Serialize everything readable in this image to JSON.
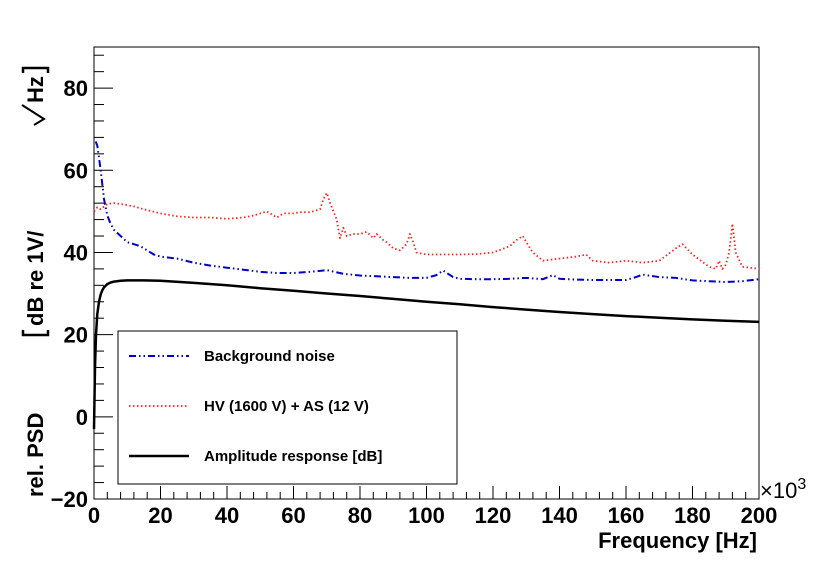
{
  "chart_data": {
    "type": "line",
    "title": "",
    "xlabel": "Frequency [Hz]",
    "ylabel_main": "rel. PSD",
    "ylabel_bracket_content": "dB re 1V/",
    "ylabel_bracket_tail": "Hz",
    "x_multiplier": "×10",
    "x_multiplier_exp": "3",
    "xlim": [
      0,
      200
    ],
    "ylim": [
      -20,
      90
    ],
    "x_ticks": [
      0,
      20,
      40,
      60,
      80,
      100,
      120,
      140,
      160,
      180,
      200
    ],
    "x_tick_labels": [
      "0",
      "20",
      "40",
      "60",
      "80",
      "100",
      "120",
      "140",
      "160",
      "180",
      "200"
    ],
    "y_ticks": [
      -20,
      0,
      20,
      40,
      60,
      80
    ],
    "y_tick_labels": [
      "−20",
      "0",
      "20",
      "40",
      "60",
      "80"
    ],
    "grid": false,
    "legend_position": "bottom-left",
    "series": [
      {
        "name": "Background noise",
        "color": "#0000cc",
        "dash": "dashdot",
        "x": [
          0.5,
          1,
          2,
          3,
          4,
          5,
          6,
          8,
          10,
          12,
          14,
          16,
          18,
          20,
          25,
          30,
          35,
          40,
          45,
          50,
          55,
          60,
          65,
          68,
          70,
          75,
          80,
          85,
          90,
          95,
          100,
          103,
          105,
          108,
          110,
          115,
          120,
          125,
          130,
          135,
          138,
          140,
          145,
          150,
          155,
          160,
          163,
          165,
          170,
          175,
          180,
          185,
          190,
          195,
          200
        ],
        "y": [
          67,
          66,
          60,
          53,
          49,
          47,
          45.5,
          44,
          42.5,
          42,
          41.5,
          40.5,
          39.5,
          39,
          38.5,
          37.5,
          36.8,
          36.3,
          35.8,
          35.3,
          35,
          35,
          35.3,
          35.5,
          35.7,
          34.8,
          34.4,
          34.2,
          34,
          33.8,
          33.8,
          34.5,
          35.6,
          34,
          33.6,
          33.5,
          33.5,
          33.6,
          33.8,
          33.5,
          34.5,
          33.6,
          33.4,
          33.3,
          33.3,
          33.3,
          34,
          34.6,
          34,
          33.8,
          33.2,
          33,
          32.8,
          33,
          33.5
        ]
      },
      {
        "name": "HV (1600 V) + AS (12 V)",
        "color": "#ff2020",
        "dash": "dotted",
        "x": [
          0,
          1,
          2,
          4,
          6,
          8,
          10,
          12,
          15,
          20,
          25,
          30,
          35,
          40,
          45,
          48,
          50,
          52,
          55,
          57,
          60,
          62,
          65,
          68,
          69,
          70,
          71,
          73,
          74,
          75,
          76,
          78,
          80,
          82,
          84,
          85,
          87,
          88,
          90,
          92,
          94,
          95,
          96,
          97,
          100,
          105,
          110,
          115,
          120,
          125,
          127,
          129,
          130,
          132,
          135,
          140,
          145,
          148,
          150,
          155,
          160,
          165,
          170,
          175,
          177,
          180,
          185,
          187,
          188,
          189,
          190,
          191,
          192,
          193,
          195,
          200
        ],
        "y": [
          50,
          51,
          50.5,
          51.8,
          52,
          51.8,
          51.5,
          51.2,
          50.5,
          49.5,
          48.8,
          48.5,
          48.5,
          48.2,
          48.5,
          49,
          49.5,
          50,
          48.5,
          49.5,
          49.5,
          49.8,
          49.8,
          50.5,
          53,
          54.5,
          52,
          48,
          43.5,
          46,
          44,
          44.5,
          44.5,
          45,
          43.5,
          44.5,
          43,
          42.5,
          41,
          40.5,
          42,
          44.5,
          42.5,
          40,
          39.5,
          39.5,
          39.5,
          39.6,
          40,
          41.5,
          43,
          44,
          42.5,
          40,
          38,
          38.5,
          39,
          39.5,
          38,
          37.5,
          38,
          37.5,
          38,
          41,
          42,
          39.5,
          36.5,
          36,
          38,
          36,
          37,
          40,
          47,
          40,
          36.5,
          36
        ]
      },
      {
        "name": "Amplitude response [dB]",
        "color": "#000000",
        "dash": "solid",
        "x": [
          0,
          0.3,
          0.6,
          1,
          1.5,
          2,
          2.5,
          3,
          4,
          5,
          6,
          8,
          10,
          12,
          15,
          20,
          30,
          40,
          50,
          60,
          70,
          80,
          90,
          100,
          110,
          120,
          130,
          140,
          150,
          160,
          170,
          180,
          190,
          200
        ],
        "y": [
          -3,
          12,
          20,
          25,
          28,
          29.8,
          30.8,
          31.5,
          32.3,
          32.7,
          32.9,
          33.1,
          33.2,
          33.2,
          33.2,
          33.1,
          32.6,
          32,
          31.3,
          30.7,
          30,
          29.4,
          28.7,
          28,
          27.4,
          26.7,
          26.1,
          25.5,
          25,
          24.5,
          24.1,
          23.7,
          23.4,
          23.1
        ]
      }
    ]
  }
}
